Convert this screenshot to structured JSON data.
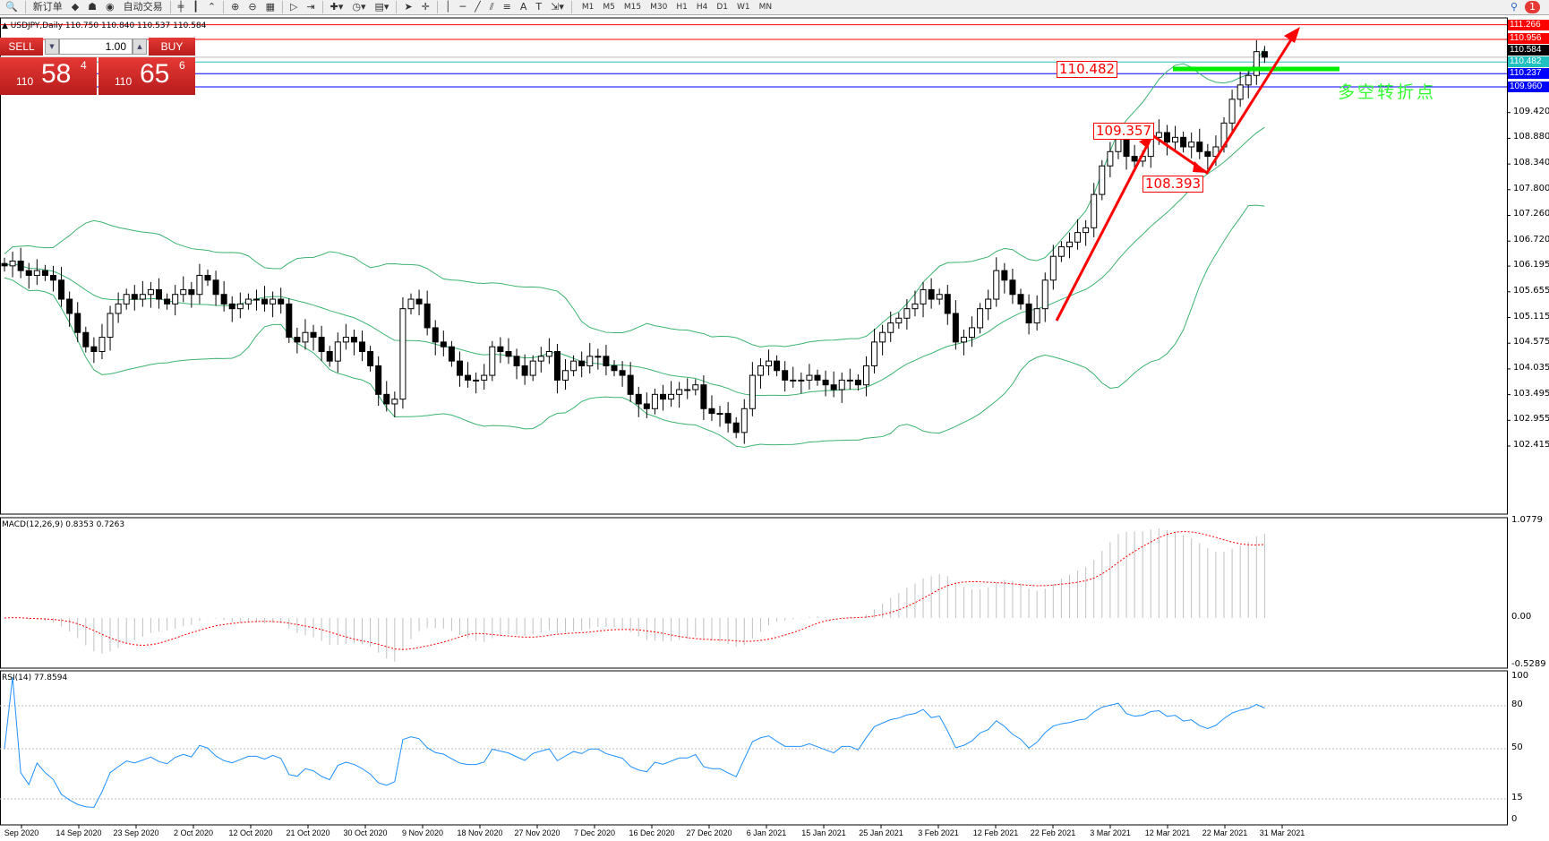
{
  "toolbar": {
    "new_order": "新订单",
    "auto_trading": "自动交易",
    "timeframes": [
      "M1",
      "M5",
      "M15",
      "M30",
      "H1",
      "H4",
      "D1",
      "W1",
      "MN"
    ],
    "notification_count": "1"
  },
  "chart_header": "▲ USDJPY,Daily  110.750 110.840 110.537 110.584",
  "trade_panel": {
    "sell": "SELL",
    "buy": "BUY",
    "lot": "1.00",
    "sell_prefix": "110",
    "sell_big": "58",
    "sell_sup": "4",
    "buy_prefix": "110",
    "buy_big": "65",
    "buy_sup": "6"
  },
  "colors": {
    "bull_bear": "#000000",
    "bands": "#3cb371",
    "macd_signal": "#ff0000",
    "macd_hist": "#c0c0c0",
    "rsi": "#1e90ff",
    "arrow": "#ff0000",
    "green_marker": "#00ee00"
  },
  "price_axis": [
    "111.266",
    "110.956",
    "110.584",
    "110.482",
    "110.237",
    "109.960",
    "109.420",
    "108.880",
    "108.340",
    "107.800",
    "107.260",
    "106.720",
    "106.195",
    "105.655",
    "105.115",
    "104.575",
    "104.035",
    "103.495",
    "102.955",
    "102.415"
  ],
  "hlines": [
    {
      "price": 111.266,
      "label": "111.266",
      "color": "#ff0000"
    },
    {
      "price": 110.956,
      "label": "110.956",
      "color": "#ff0000"
    },
    {
      "price": 110.584,
      "label": "110.584",
      "color": "#000000"
    },
    {
      "price": 110.482,
      "label": "110.482",
      "color": "#20c0c0"
    },
    {
      "price": 110.237,
      "label": "110.237",
      "color": "#0000ff"
    },
    {
      "price": 109.96,
      "label": "109.960",
      "color": "#0000ff"
    }
  ],
  "annotations": {
    "box1": "110.482",
    "box2": "109.357",
    "box3": "108.393",
    "text": "多空转折点"
  },
  "macd": {
    "label": "MACD(12,26,9) 0.8353 0.7263",
    "axis": [
      "1.0779",
      "0.00",
      "-0.5289"
    ]
  },
  "rsi": {
    "label": "RSI(14) 77.8594",
    "axis": [
      "100",
      "80",
      "50",
      "15",
      "0"
    ]
  },
  "dates": [
    "Sep 2020",
    "14 Sep 2020",
    "23 Sep 2020",
    "2 Oct 2020",
    "12 Oct 2020",
    "21 Oct 2020",
    "30 Oct 2020",
    "9 Nov 2020",
    "18 Nov 2020",
    "27 Nov 2020",
    "7 Dec 2020",
    "16 Dec 2020",
    "27 Dec 2020",
    "6 Jan 2021",
    "15 Jan 2021",
    "25 Jan 2021",
    "3 Feb 2021",
    "12 Feb 2021",
    "22 Feb 2021",
    "3 Mar 2021",
    "12 Mar 2021",
    "22 Mar 2021",
    "31 Mar 2021"
  ],
  "chart_data": {
    "type": "candlestick",
    "symbol": "USDJPY",
    "timeframe": "Daily",
    "ylim": [
      102.415,
      111.266
    ],
    "closes": [
      106.2,
      106.3,
      106.1,
      106.0,
      106.1,
      106.0,
      105.9,
      105.5,
      105.2,
      104.8,
      104.5,
      104.4,
      104.7,
      105.2,
      105.4,
      105.6,
      105.5,
      105.6,
      105.7,
      105.5,
      105.4,
      105.6,
      105.7,
      105.6,
      106.0,
      105.9,
      105.6,
      105.4,
      105.3,
      105.4,
      105.5,
      105.5,
      105.4,
      105.5,
      105.4,
      104.7,
      104.6,
      104.8,
      104.7,
      104.4,
      104.2,
      104.6,
      104.7,
      104.6,
      104.4,
      104.1,
      103.5,
      103.3,
      103.4,
      105.3,
      105.5,
      105.4,
      104.9,
      104.6,
      104.5,
      104.2,
      103.9,
      103.8,
      103.8,
      103.9,
      104.5,
      104.4,
      104.3,
      104.1,
      103.9,
      104.2,
      104.3,
      104.4,
      103.8,
      104.0,
      104.2,
      104.1,
      104.3,
      104.3,
      104.1,
      104.0,
      103.9,
      103.5,
      103.3,
      103.2,
      103.5,
      103.4,
      103.5,
      103.6,
      103.6,
      103.7,
      103.2,
      103.1,
      103.1,
      102.9,
      102.7,
      103.2,
      103.9,
      104.1,
      104.2,
      104.0,
      103.8,
      103.8,
      103.8,
      103.9,
      103.8,
      103.7,
      103.6,
      103.8,
      103.8,
      103.7,
      104.1,
      104.6,
      104.8,
      105.0,
      105.1,
      105.3,
      105.4,
      105.7,
      105.5,
      105.6,
      105.2,
      104.6,
      104.7,
      104.9,
      105.3,
      105.5,
      106.1,
      105.9,
      105.6,
      105.4,
      105.0,
      105.3,
      105.9,
      106.4,
      106.6,
      106.7,
      106.9,
      107.0,
      107.7,
      108.3,
      108.6,
      108.9,
      108.5,
      108.4,
      108.5,
      108.9,
      109.0,
      108.8,
      108.9,
      108.7,
      108.8,
      108.6,
      108.5,
      108.7,
      109.2,
      109.7,
      110.0,
      110.2,
      110.7,
      110.584
    ]
  }
}
